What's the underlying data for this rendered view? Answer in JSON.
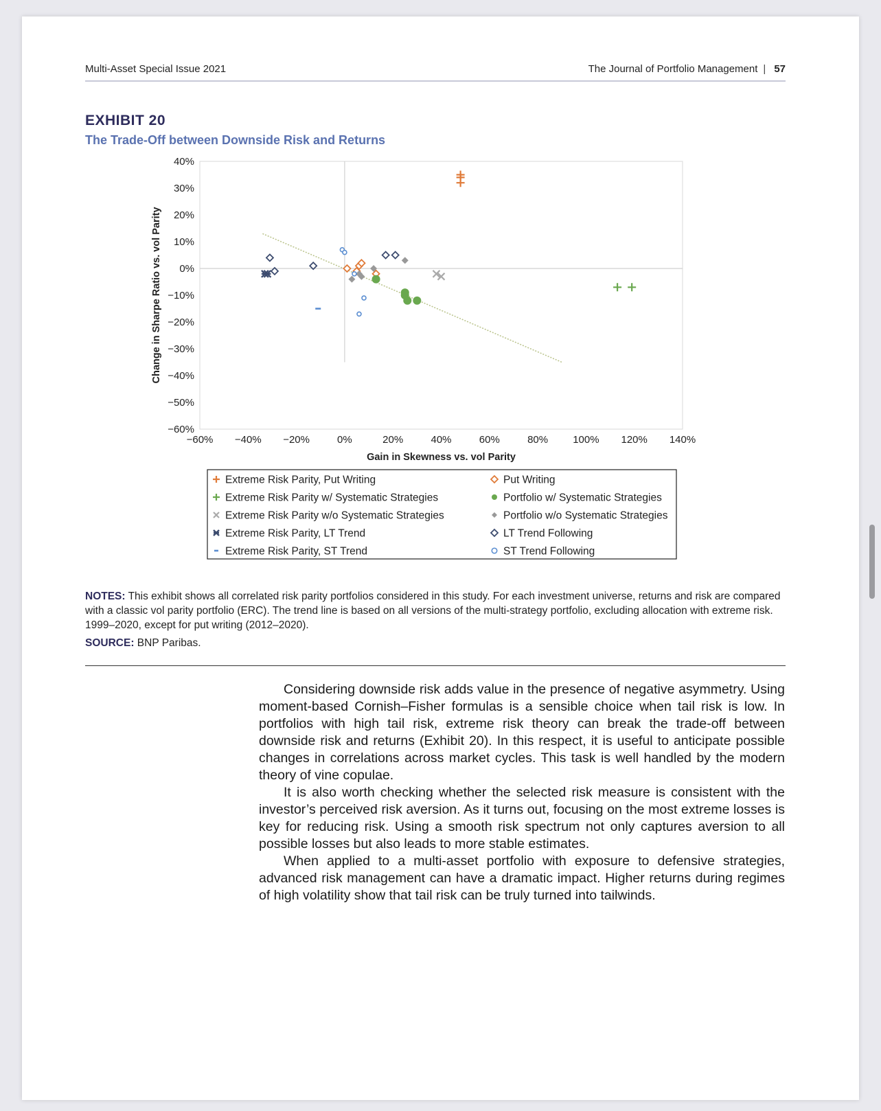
{
  "header": {
    "left": "Multi-Asset Special Issue 2021",
    "right": "The Journal of Portfolio Management",
    "separator": "|",
    "page_number": "57"
  },
  "exhibit": {
    "label": "EXHIBIT 20",
    "title": "The Trade-Off between Downside Risk and Returns"
  },
  "chart_data": {
    "type": "scatter",
    "xlabel": "Gain in Skewness vs. vol Parity",
    "ylabel": "Change in Sharpe Ratio vs. vol Parity",
    "xlim": [
      -60,
      140
    ],
    "ylim": [
      -60,
      40
    ],
    "x_ticks": [
      "−60%",
      "−40%",
      "−20%",
      "0%",
      "20%",
      "40%",
      "60%",
      "80%",
      "100%",
      "120%",
      "140%"
    ],
    "y_ticks": [
      "40%",
      "30%",
      "20%",
      "10%",
      "0%",
      "−10%",
      "−20%",
      "−30%",
      "−40%",
      "−50%",
      "−60%"
    ],
    "grid": false,
    "legend_position": "bottom",
    "trendline": {
      "from": [
        -34,
        13
      ],
      "to": [
        90,
        -35
      ]
    },
    "series": [
      {
        "name": "Extreme Risk Parity, Put Writing",
        "marker": "plus",
        "color": "#e07b39",
        "points": [
          [
            48,
            35
          ],
          [
            48,
            34
          ],
          [
            48,
            32
          ]
        ]
      },
      {
        "name": "Put Writing",
        "marker": "diamond-open",
        "color": "#e07b39",
        "points": [
          [
            1,
            0
          ],
          [
            6,
            1
          ],
          [
            7,
            2
          ],
          [
            13,
            -2
          ],
          [
            5,
            -1
          ]
        ]
      },
      {
        "name": "Extreme Risk Parity w/ Systematic Strategies",
        "marker": "plus",
        "color": "#6aa84f",
        "points": [
          [
            113,
            -7
          ],
          [
            119,
            -7
          ]
        ]
      },
      {
        "name": "Portfolio w/ Systematic Strategies",
        "marker": "dot",
        "color": "#6aa84f",
        "points": [
          [
            13,
            -4
          ],
          [
            25,
            -9
          ],
          [
            25,
            -10
          ],
          [
            26,
            -12
          ],
          [
            30,
            -12
          ]
        ]
      },
      {
        "name": "Extreme Risk Parity w/o Systematic Strategies",
        "marker": "cross",
        "color": "#aaaaaa",
        "points": [
          [
            38,
            -2
          ],
          [
            40,
            -3
          ]
        ]
      },
      {
        "name": "Portfolio w/o Systematic Strategies",
        "marker": "diamond-filled",
        "color": "#999999",
        "points": [
          [
            25,
            3
          ],
          [
            12,
            0
          ],
          [
            6,
            -2
          ],
          [
            7,
            -3
          ],
          [
            3,
            -4
          ]
        ]
      },
      {
        "name": "Extreme Risk Parity, LT Trend",
        "marker": "star",
        "color": "#3c4b6e",
        "points": [
          [
            -33,
            -2
          ],
          [
            -32,
            -2
          ]
        ]
      },
      {
        "name": "LT Trend Following",
        "marker": "diamond-open",
        "color": "#3c4b6e",
        "points": [
          [
            -31,
            4
          ],
          [
            -29,
            -1
          ],
          [
            -13,
            1
          ],
          [
            17,
            5
          ],
          [
            21,
            5
          ]
        ]
      },
      {
        "name": "Extreme Risk Parity, ST Trend",
        "marker": "dash",
        "color": "#5b8ed1",
        "points": [
          [
            -11,
            -15
          ]
        ]
      },
      {
        "name": "ST Trend Following",
        "marker": "circle-open",
        "color": "#5b8ed1",
        "points": [
          [
            -1,
            7
          ],
          [
            0,
            6
          ],
          [
            4,
            -2
          ],
          [
            8,
            -11
          ],
          [
            6,
            -17
          ]
        ]
      }
    ]
  },
  "notes": {
    "label": "NOTES:",
    "text": "This exhibit shows all correlated risk parity portfolios considered in this study. For each investment universe, returns and risk are compared with a classic vol parity portfolio (ERC). The trend line is based on all versions of the multi-strategy portfolio, excluding allocation with extreme risk. 1999–2020, except for put writing (2012–2020)."
  },
  "source": {
    "label": "SOURCE:",
    "text": "BNP Paribas."
  },
  "body": {
    "paragraphs": [
      "Considering downside risk adds value in the presence of negative asymmetry. Using moment-based Cornish–Fisher formulas is a sensible choice when tail risk is low. In portfolios with high tail risk, extreme risk theory can break the trade-off between downside risk and returns (Exhibit 20). In this respect, it is useful to anticipate possible changes in correlations across market cycles. This task is well handled by the modern theory of vine copulae.",
      "It is also worth checking whether the selected risk measure is consistent with the investor’s perceived risk aversion. As it turns out, focusing on the most extreme losses is key for reducing risk. Using a smooth risk spectrum not only captures aversion to all possible losses but also leads to more stable estimates.",
      "When applied to a multi-asset portfolio with exposure to defensive strategies, advanced risk management can have a dramatic impact. Higher returns during regimes of high volatility show that tail risk can be truly turned into tailwinds."
    ]
  }
}
